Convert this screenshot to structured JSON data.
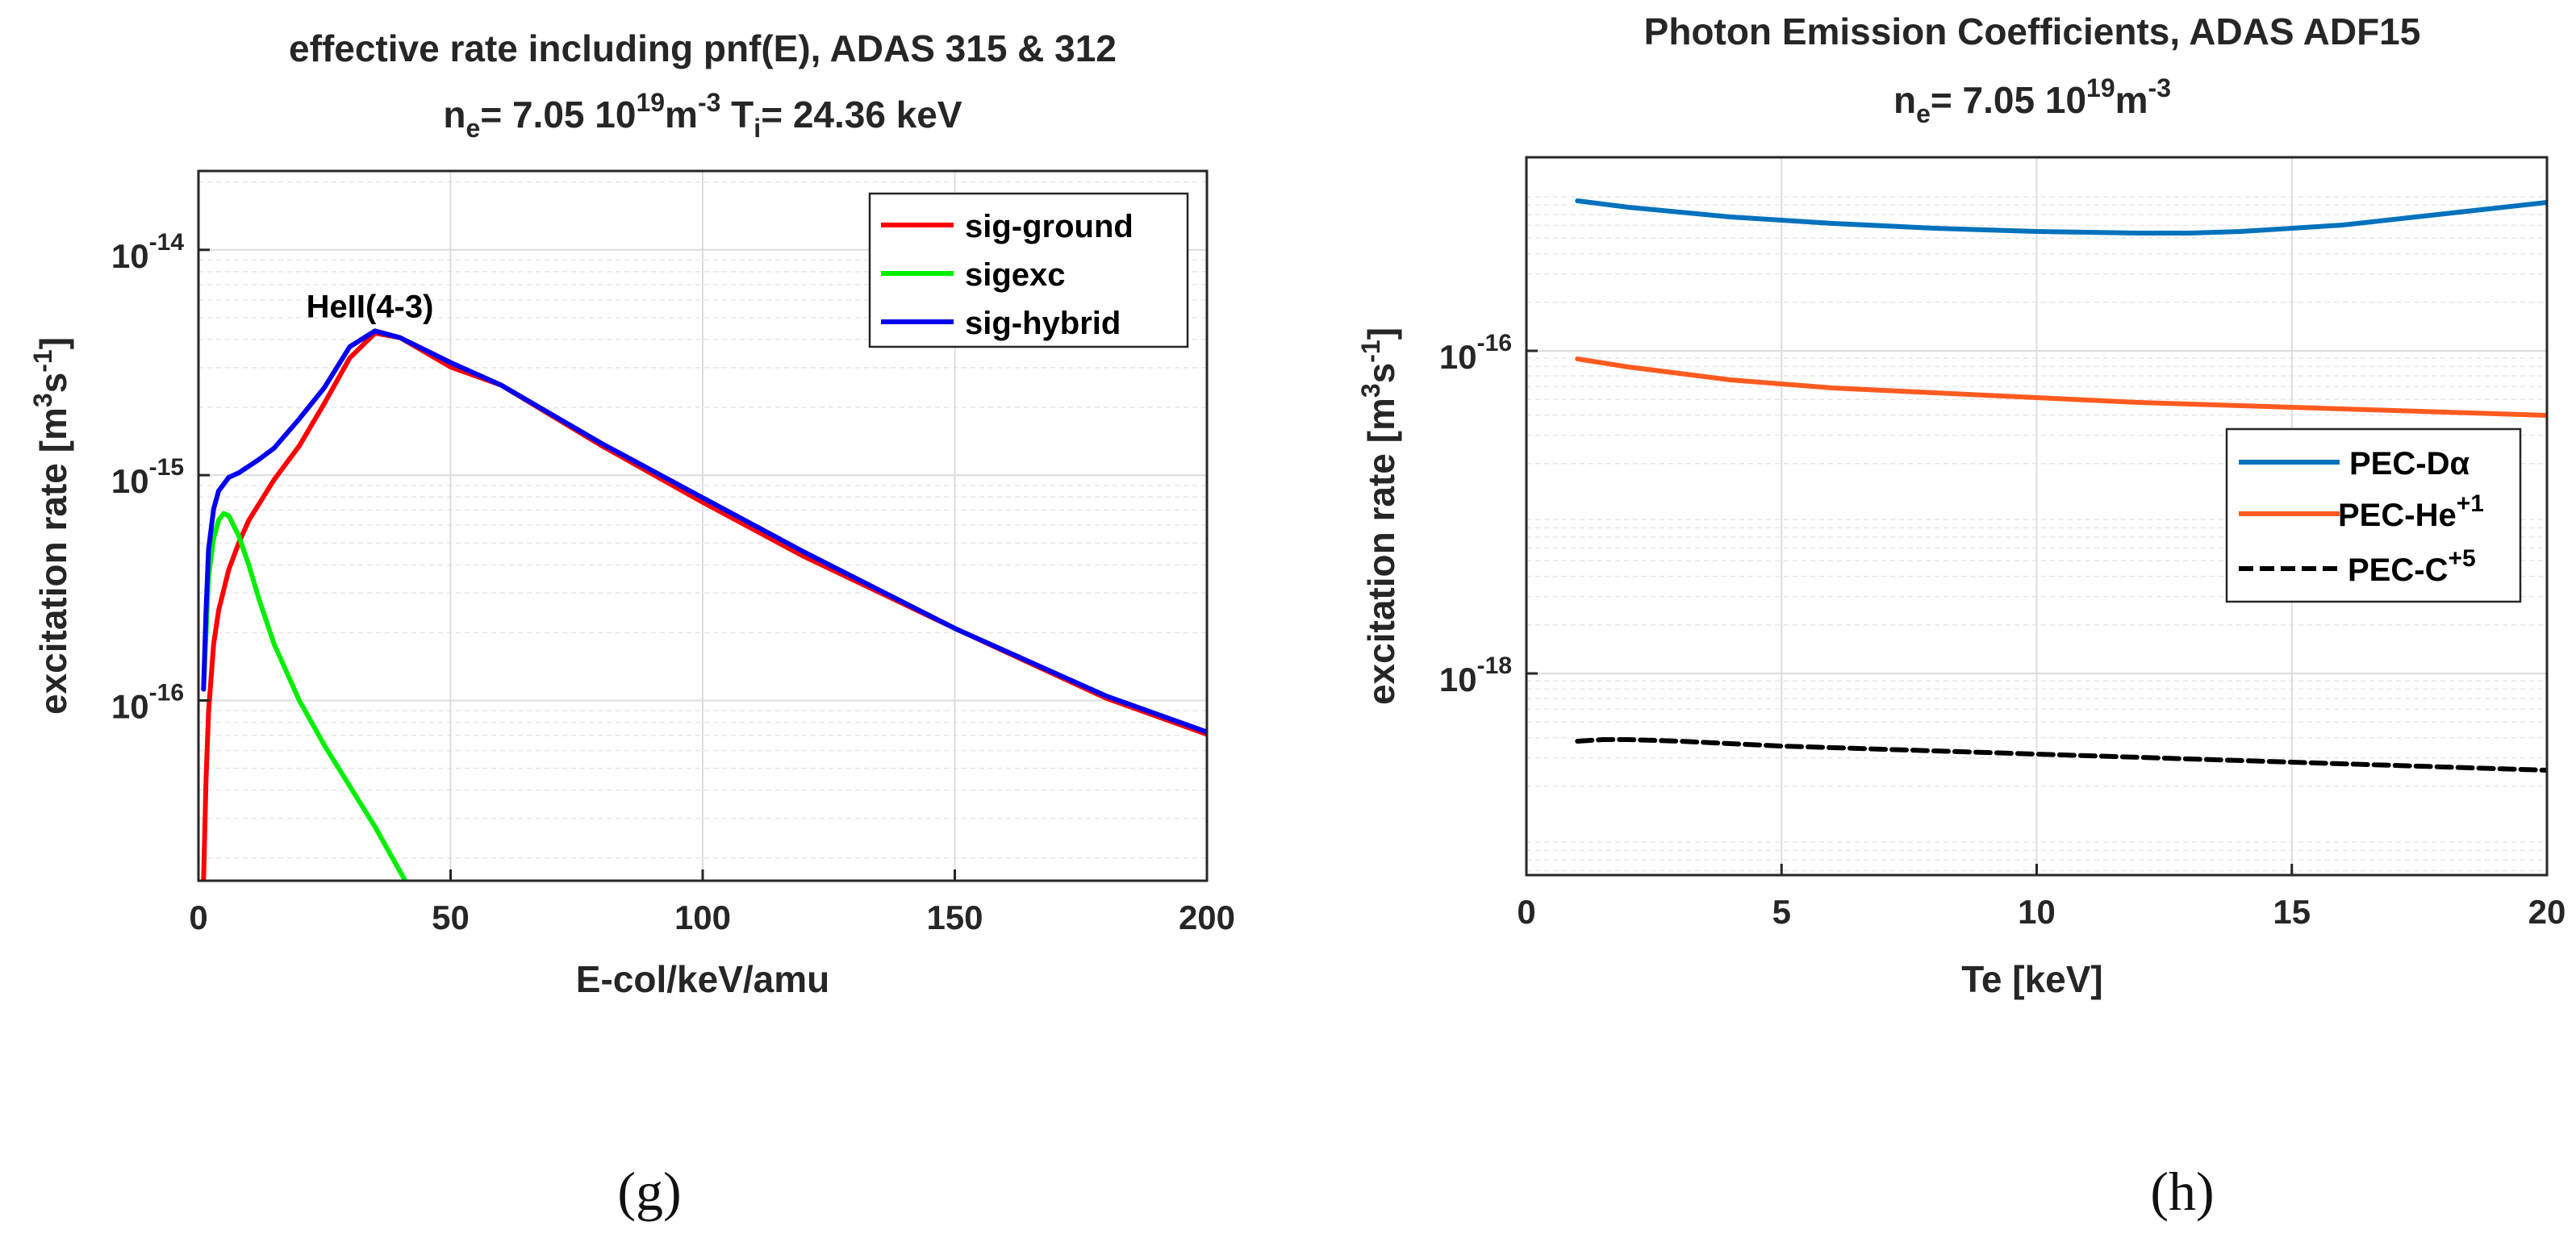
{
  "chart_data": [
    {
      "type": "line",
      "panel": "(g)",
      "title_line1": "effective rate including pnf(E), ADAS 315 & 312",
      "title_line2": {
        "ne_label": "n",
        "ne_sub": "e",
        "ne_mid": "= 7.05 10",
        "ne_sup": "19",
        "ne_unit": "m",
        "ne_unit_sup": "-3",
        "ti_label": " T",
        "ti_sub": "i",
        "ti_value": "= 24.36 keV"
      },
      "xlabel": "E-col/keV/amu",
      "ylabel": {
        "pre": "excitation rate [m",
        "s1": "3",
        "mid": "s",
        "s2": "-1",
        "post": "]"
      },
      "xlim": [
        0,
        200
      ],
      "ylim_log10": [
        -16.8,
        -13.65
      ],
      "xticks": [
        0,
        50,
        100,
        150,
        200
      ],
      "yticks": [
        {
          "base": "10",
          "exp": "-14",
          "log": -14
        },
        {
          "base": "10",
          "exp": "-15",
          "log": -15
        },
        {
          "base": "10",
          "exp": "-16",
          "log": -16
        }
      ],
      "yscale": "log",
      "grid": true,
      "legend_position": "top-right",
      "annotation": {
        "text": "HeII(4-3)",
        "x": 34,
        "y_log10": -14.3
      },
      "series": [
        {
          "name": "sig-ground",
          "color": "#ff0000",
          "x": [
            1,
            1.5,
            2,
            3,
            4,
            6,
            8,
            10,
            15,
            20,
            25,
            30,
            35,
            40,
            50,
            60,
            80,
            100,
            120,
            150,
            180,
            200
          ],
          "y_log10": [
            -16.8,
            -16.35,
            -16.05,
            -15.75,
            -15.6,
            -15.42,
            -15.3,
            -15.2,
            -15.02,
            -14.87,
            -14.68,
            -14.48,
            -14.37,
            -14.39,
            -14.52,
            -14.6,
            -14.87,
            -15.12,
            -15.36,
            -15.68,
            -15.99,
            -16.15
          ]
        },
        {
          "name": "sigexc",
          "color": "#00ee00",
          "x": [
            1,
            2,
            3,
            4,
            5,
            6,
            8,
            10,
            12,
            15,
            20,
            25,
            30,
            35,
            38,
            41
          ],
          "y_log10": [
            -15.95,
            -15.45,
            -15.28,
            -15.2,
            -15.17,
            -15.18,
            -15.27,
            -15.4,
            -15.55,
            -15.75,
            -16.0,
            -16.2,
            -16.38,
            -16.56,
            -16.68,
            -16.8
          ]
        },
        {
          "name": "sig-hybrid",
          "color": "#0000ee",
          "x": [
            1,
            1.5,
            2,
            3,
            4,
            5,
            6,
            8,
            10,
            12,
            15,
            20,
            25,
            30,
            35,
            40,
            50,
            60,
            80,
            100,
            120,
            150,
            180,
            200
          ],
          "y_log10": [
            -15.95,
            -15.6,
            -15.33,
            -15.15,
            -15.07,
            -15.04,
            -15.01,
            -14.99,
            -14.96,
            -14.93,
            -14.88,
            -14.75,
            -14.61,
            -14.43,
            -14.36,
            -14.39,
            -14.5,
            -14.6,
            -14.86,
            -15.1,
            -15.34,
            -15.68,
            -15.98,
            -16.14
          ]
        }
      ]
    },
    {
      "type": "line",
      "panel": "(h)",
      "title_line1": "Photon Emission Coefficients, ADAS ADF15",
      "title_line2": {
        "ne_label": "n",
        "ne_sub": "e",
        "ne_mid": "= 7.05 10",
        "ne_sup": "19",
        "ne_unit": "m",
        "ne_unit_sup": "-3"
      },
      "xlabel": "Te [keV]",
      "ylabel": {
        "pre": "excitation rate [m",
        "s1": "3",
        "mid": "s",
        "s2": "-1",
        "post": "]"
      },
      "xlim": [
        0,
        20
      ],
      "ylim_log10": [
        -19.25,
        -14.8
      ],
      "xticks": [
        0,
        5,
        10,
        15,
        20
      ],
      "yticks": [
        {
          "base": "10",
          "exp": "-16",
          "log": -16
        },
        {
          "base": "10",
          "exp": "-18",
          "log": -18
        }
      ],
      "yscale": "log",
      "grid": true,
      "legend_position": "middle-right",
      "series": [
        {
          "name": "PEC-Dα",
          "color": "#0072bd",
          "dash": "solid",
          "x": [
            1,
            2,
            4,
            6,
            8,
            10,
            12,
            13,
            14,
            16,
            18,
            20
          ],
          "y_log10": [
            -15.07,
            -15.11,
            -15.17,
            -15.21,
            -15.24,
            -15.26,
            -15.27,
            -15.27,
            -15.26,
            -15.22,
            -15.15,
            -15.08
          ]
        },
        {
          "name": "PEC-He",
          "name_sup": "+1",
          "color": "#ff5a1f",
          "dash": "solid",
          "x": [
            1,
            2,
            4,
            6,
            8,
            10,
            12,
            14,
            16,
            18,
            20
          ],
          "y_log10": [
            -16.05,
            -16.1,
            -16.18,
            -16.23,
            -16.26,
            -16.29,
            -16.32,
            -16.34,
            -16.36,
            -16.38,
            -16.4
          ]
        },
        {
          "name": "PEC-C",
          "name_sup": "+5",
          "color": "#000000",
          "dash": "dashed",
          "x": [
            1,
            1.5,
            2,
            3,
            5,
            8,
            10,
            12,
            15,
            18,
            20
          ],
          "y_log10": [
            -18.42,
            -18.41,
            -18.41,
            -18.42,
            -18.45,
            -18.48,
            -18.5,
            -18.52,
            -18.55,
            -18.58,
            -18.6
          ]
        }
      ]
    }
  ],
  "captions": {
    "left": "(g)",
    "right": "(h)"
  }
}
